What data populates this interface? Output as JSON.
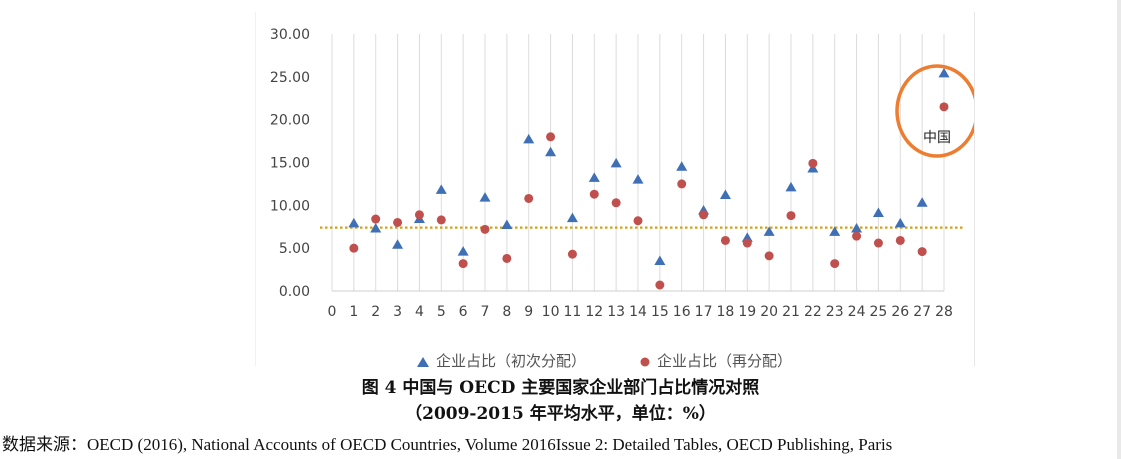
{
  "chart_data": {
    "type": "scatter",
    "title": "",
    "xlabel": "",
    "ylabel": "",
    "xlim": [
      0,
      28
    ],
    "ylim": [
      0,
      30
    ],
    "x_ticks": [
      "0",
      "1",
      "2",
      "3",
      "4",
      "5",
      "6",
      "7",
      "8",
      "9",
      "10",
      "11",
      "12",
      "13",
      "14",
      "15",
      "16",
      "17",
      "18",
      "19",
      "20",
      "21",
      "22",
      "23",
      "24",
      "25",
      "26",
      "27",
      "28"
    ],
    "y_ticks": [
      "0.00",
      "5.00",
      "10.00",
      "15.00",
      "20.00",
      "25.00",
      "30.00"
    ],
    "grid": "vertical",
    "legend_position": "bottom",
    "reference_line": {
      "y": 7.4,
      "style": "dotted",
      "color": "#d4a017"
    },
    "series": [
      {
        "name": "企业占比（初次分配）",
        "marker": "triangle",
        "color": "#3f6fb5",
        "x": [
          1,
          2,
          3,
          4,
          5,
          6,
          7,
          8,
          9,
          10,
          11,
          12,
          13,
          14,
          15,
          16,
          17,
          18,
          19,
          20,
          21,
          22,
          23,
          24,
          25,
          26,
          27,
          28
        ],
        "y": [
          7.9,
          7.3,
          5.4,
          8.4,
          11.8,
          4.6,
          10.9,
          7.7,
          17.7,
          16.2,
          8.5,
          13.2,
          14.9,
          13.0,
          3.5,
          14.5,
          9.4,
          11.2,
          6.2,
          6.9,
          12.1,
          14.3,
          6.9,
          7.3,
          9.1,
          7.9,
          10.3,
          25.4
        ]
      },
      {
        "name": "企业占比（再分配）",
        "marker": "circle",
        "color": "#c0504d",
        "x": [
          1,
          2,
          3,
          4,
          5,
          6,
          7,
          8,
          9,
          10,
          11,
          12,
          13,
          14,
          15,
          16,
          17,
          18,
          19,
          20,
          21,
          22,
          23,
          24,
          25,
          26,
          27,
          28
        ],
        "y": [
          5.0,
          8.4,
          8.0,
          8.9,
          8.3,
          3.2,
          7.2,
          3.8,
          10.8,
          18.0,
          4.3,
          11.3,
          10.3,
          8.2,
          0.7,
          12.5,
          8.9,
          5.9,
          5.6,
          4.1,
          8.8,
          14.9,
          3.2,
          6.4,
          5.6,
          5.9,
          4.6,
          21.5
        ]
      }
    ],
    "annotations": [
      {
        "text": "中国",
        "target_x": 28,
        "shape": "ellipse",
        "color": "#ed7d31"
      }
    ]
  },
  "caption": {
    "line1": "图 4 中国与 OECD 主要国家企业部门占比情况对照",
    "line2": "（2009-2015 年平均水平，单位：%）"
  },
  "source": "数据来源：OECD (2016), National Accounts of OECD Countries, Volume 2016Issue 2: Detailed Tables, OECD Publishing, Paris"
}
